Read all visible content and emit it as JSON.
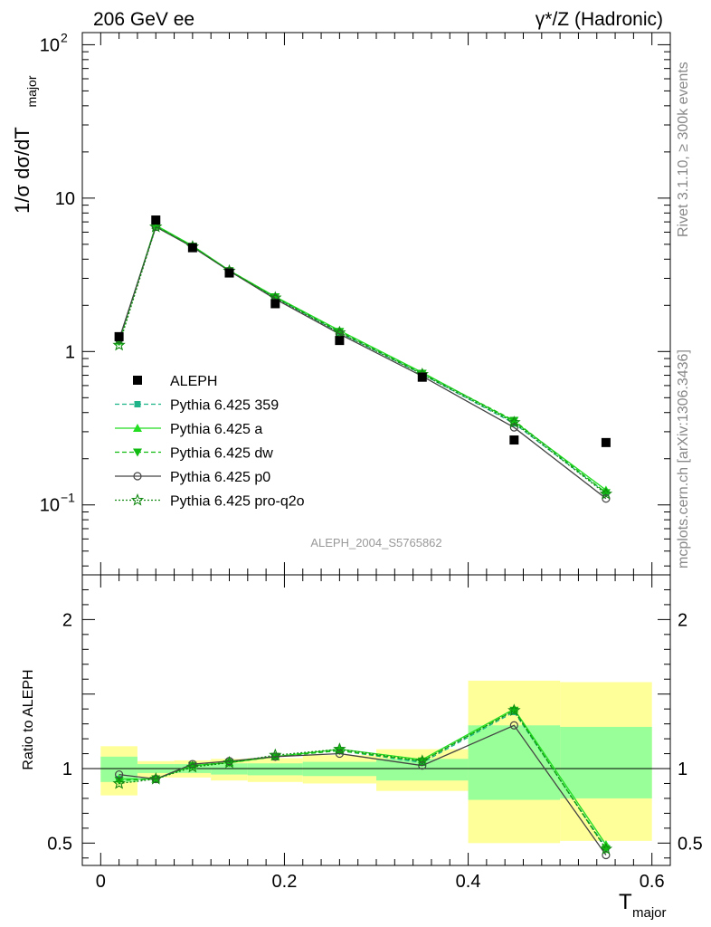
{
  "header": {
    "left": "206 GeV ee",
    "right": "γ*/Z (Hadronic)"
  },
  "side_text": {
    "rivet": "Rivet 3.1.10, ≥ 300k events",
    "mcplots": "mcplots.cern.ch [arXiv:1306.3436]"
  },
  "analysis_label": "ALEPH_2004_S5765862",
  "colors": {
    "data": "#000000",
    "p359": "#1fb38a",
    "pa": "#22dd22",
    "pdw": "#11bb11",
    "pp0": "#444444",
    "pq2o": "#118811",
    "band_outer": "#ffff99",
    "band_inner": "#99ff99"
  },
  "chart_data": [
    {
      "type": "scatter",
      "title": "",
      "xlabel": "",
      "ylabel": "1/σ dσ/dT_major",
      "ylabel_main": "1/σ  dσ/dT",
      "ylabel_sub": "major",
      "yscale": "log",
      "xlim": [
        -0.02,
        0.62
      ],
      "ylim": [
        0.035,
        120
      ],
      "yticks": [
        {
          "value": 100,
          "label": "10",
          "sup": "2"
        },
        {
          "value": 10,
          "label": "10",
          "sup": ""
        },
        {
          "value": 1,
          "label": "1",
          "sup": ""
        },
        {
          "value": 0.1,
          "label": "10",
          "sup": "−1"
        }
      ],
      "legend_position": "lower-left",
      "x": [
        0.02,
        0.06,
        0.1,
        0.14,
        0.19,
        0.26,
        0.35,
        0.45,
        0.55
      ],
      "data": {
        "name": "ALEPH",
        "values": [
          1.25,
          7.2,
          4.75,
          3.25,
          2.05,
          1.18,
          0.68,
          0.265,
          0.255
        ]
      },
      "series": [
        {
          "name": "Pythia 6.425 359",
          "key": "p359",
          "values": [
            1.18,
            6.6,
            4.85,
            3.35,
            2.25,
            1.33,
            0.71,
            0.34,
            0.12
          ]
        },
        {
          "name": "Pythia 6.425 a",
          "key": "pa",
          "values": [
            1.17,
            6.65,
            4.9,
            3.38,
            2.28,
            1.37,
            0.73,
            0.35,
            0.125
          ]
        },
        {
          "name": "Pythia 6.425 dw",
          "key": "pdw",
          "values": [
            1.16,
            6.6,
            4.85,
            3.36,
            2.27,
            1.35,
            0.72,
            0.355,
            0.12
          ]
        },
        {
          "name": "Pythia 6.425 p0",
          "key": "pp0",
          "values": [
            1.2,
            6.5,
            4.8,
            3.35,
            2.2,
            1.3,
            0.69,
            0.32,
            0.11
          ]
        },
        {
          "name": "Pythia 6.425 pro-q2o",
          "key": "pq2o",
          "values": [
            1.1,
            6.5,
            4.82,
            3.35,
            2.24,
            1.33,
            0.71,
            0.345,
            0.118
          ]
        }
      ]
    },
    {
      "type": "line",
      "title": "",
      "xlabel": "T",
      "xlabel_sub": "major",
      "ylabel": "Ratio to ALEPH",
      "xlim": [
        -0.02,
        0.62
      ],
      "ylim": [
        0.35,
        2.3
      ],
      "xticks": [
        {
          "value": 0,
          "label": "0"
        },
        {
          "value": 0.2,
          "label": "0.2"
        },
        {
          "value": 0.4,
          "label": "0.4"
        },
        {
          "value": 0.6,
          "label": "0.6"
        }
      ],
      "yticks": [
        {
          "value": 2,
          "label": "2"
        },
        {
          "value": 1,
          "label": "1"
        },
        {
          "value": 0.5,
          "label": "0.5"
        }
      ],
      "bins": [
        {
          "x0": 0.0,
          "x1": 0.04,
          "outer": [
            0.82,
            1.15
          ],
          "inner": [
            0.91,
            1.08
          ]
        },
        {
          "x0": 0.04,
          "x1": 0.08,
          "outer": [
            0.94,
            1.05
          ],
          "inner": [
            0.97,
            1.03
          ]
        },
        {
          "x0": 0.08,
          "x1": 0.12,
          "outer": [
            0.94,
            1.055
          ],
          "inner": [
            0.97,
            1.03
          ]
        },
        {
          "x0": 0.12,
          "x1": 0.16,
          "outer": [
            0.92,
            1.065
          ],
          "inner": [
            0.96,
            1.035
          ]
        },
        {
          "x0": 0.16,
          "x1": 0.22,
          "outer": [
            0.91,
            1.07
          ],
          "inner": [
            0.955,
            1.035
          ]
        },
        {
          "x0": 0.22,
          "x1": 0.3,
          "outer": [
            0.9,
            1.09
          ],
          "inner": [
            0.95,
            1.045
          ]
        },
        {
          "x0": 0.3,
          "x1": 0.4,
          "outer": [
            0.85,
            1.13
          ],
          "inner": [
            0.92,
            1.065
          ]
        },
        {
          "x0": 0.4,
          "x1": 0.5,
          "outer": [
            0.5,
            1.59
          ],
          "inner": [
            0.79,
            1.29
          ]
        },
        {
          "x0": 0.5,
          "x1": 0.6,
          "outer": [
            0.515,
            1.58
          ],
          "inner": [
            0.8,
            1.28
          ]
        }
      ],
      "x": [
        0.02,
        0.06,
        0.1,
        0.14,
        0.19,
        0.26,
        0.35,
        0.45,
        0.55
      ],
      "series": [
        {
          "name": "Pythia 6.425 359",
          "key": "p359",
          "values": [
            0.93,
            0.93,
            1.02,
            1.04,
            1.08,
            1.12,
            1.04,
            1.38,
            0.47
          ]
        },
        {
          "name": "Pythia 6.425 a",
          "key": "pa",
          "values": [
            0.93,
            0.93,
            1.02,
            1.04,
            1.08,
            1.13,
            1.06,
            1.4,
            0.49
          ]
        },
        {
          "name": "Pythia 6.425 dw",
          "key": "pdw",
          "values": [
            0.92,
            0.93,
            1.02,
            1.04,
            1.08,
            1.12,
            1.05,
            1.39,
            0.46
          ]
        },
        {
          "name": "Pythia 6.425 p0",
          "key": "pp0",
          "values": [
            0.96,
            0.93,
            1.03,
            1.05,
            1.08,
            1.1,
            1.02,
            1.29,
            0.42
          ]
        },
        {
          "name": "Pythia 6.425 pro-q2o",
          "key": "pq2o",
          "values": [
            0.9,
            0.93,
            1.01,
            1.04,
            1.09,
            1.13,
            1.05,
            1.39,
            0.46
          ]
        }
      ]
    }
  ]
}
